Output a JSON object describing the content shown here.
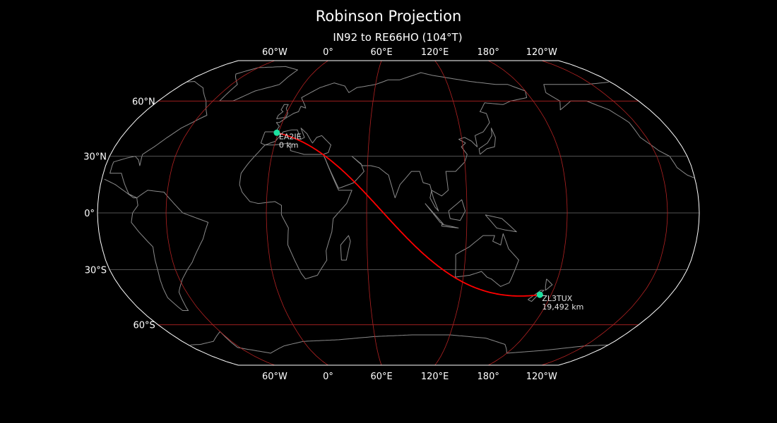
{
  "title": "Robinson Projection",
  "subtitle": "IN92 to RE66HO (104°T)",
  "projection": {
    "type": "robinson",
    "central_longitude": 79
  },
  "colors": {
    "background": "#000000",
    "coastline": "#8a8a8a",
    "outline": "#ffffff",
    "major_grid": "#b22222",
    "minor_grid": "#6e6e6e",
    "path": "#ff0000",
    "marker": "#1de0a0"
  },
  "graticule": {
    "meridians": [
      -60,
      0,
      60,
      120,
      180,
      -120
    ],
    "parallels_major": [
      60,
      -60
    ],
    "parallels_minor": [
      30,
      0,
      -30
    ]
  },
  "lon_labels": [
    {
      "lon": -60,
      "text": "60°W"
    },
    {
      "lon": 0,
      "text": "0°"
    },
    {
      "lon": 60,
      "text": "60°E"
    },
    {
      "lon": 120,
      "text": "120°E"
    },
    {
      "lon": 180,
      "text": "180°"
    },
    {
      "lon": -120,
      "text": "120°W"
    }
  ],
  "lat_labels": [
    {
      "lat": 60,
      "text": "60°N"
    },
    {
      "lat": 30,
      "text": "30°N"
    },
    {
      "lat": 0,
      "text": "0°"
    },
    {
      "lat": -30,
      "text": "30°S"
    },
    {
      "lat": -60,
      "text": "60°S"
    }
  ],
  "stations": [
    {
      "call": "EA2IE",
      "distance": "0 km",
      "lon": -1,
      "lat": 42.5
    },
    {
      "call": "ZL3TUX",
      "distance": "19,492 km",
      "lon": 172.6,
      "lat": -43.4
    }
  ]
}
